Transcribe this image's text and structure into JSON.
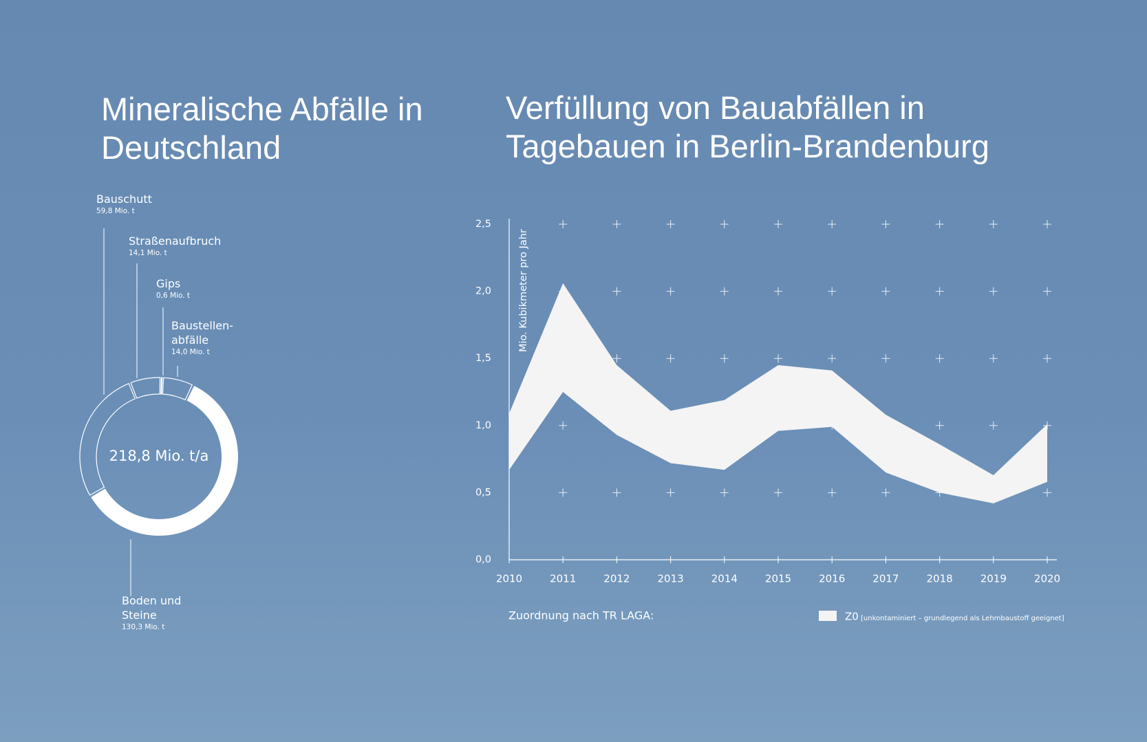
{
  "chart_data": [
    {
      "type": "donut",
      "title": "Mineralische Abfälle in Deutschland",
      "center_label": "218,8 Mio. t/a",
      "categories": [
        "Bauschutt",
        "Straßenaufbruch",
        "Gips",
        "Baustellen-abfälle",
        "Boden und Steine"
      ],
      "values": [
        59.8,
        14.1,
        0.6,
        14.0,
        130.3
      ],
      "value_labels": [
        "59,8 Mio. t",
        "14,1 Mio. t",
        "0,6 Mio. t",
        "14,0 Mio. t",
        "130,3 Mio. t"
      ],
      "color": "#ffffff",
      "filled": [
        false,
        false,
        false,
        false,
        true
      ]
    },
    {
      "type": "range_area",
      "title": "Verfüllung von Bauabfällen in Tagebauen in Berlin-Brandenburg",
      "y_label": "Mio. Kubikmeter pro Jahr",
      "x": [
        2010,
        2011,
        2012,
        2013,
        2014,
        2015,
        2016,
        2017,
        2018,
        2019,
        2020
      ],
      "series": [
        {
          "name": "Z0",
          "description": "[unkontaminiert – grundlegend als Lehmbaustoff geeignet]",
          "color": "#f4f4f4",
          "low": [
            0.67,
            1.25,
            0.93,
            0.72,
            0.67,
            0.96,
            0.99,
            0.65,
            0.5,
            0.42,
            0.58
          ],
          "high": [
            1.09,
            2.06,
            1.45,
            1.11,
            1.19,
            1.45,
            1.41,
            1.08,
            0.86,
            0.63,
            1.01
          ]
        }
      ],
      "legend_title": "Zuordnung nach TR LAGA:",
      "xlim": [
        2010,
        2020
      ],
      "xticks": [
        2010,
        2011,
        2012,
        2013,
        2014,
        2015,
        2016,
        2017,
        2018,
        2019,
        2020
      ],
      "ylim": [
        0,
        2.5
      ],
      "yticks": [
        {
          "value": 0,
          "label": "0,0"
        },
        {
          "value": 0.5,
          "label": "0,5"
        },
        {
          "value": 1,
          "label": "1,0"
        },
        {
          "value": 1.5,
          "label": "1,5"
        },
        {
          "value": 2,
          "label": "2,0"
        },
        {
          "value": 2.5,
          "label": "2,5"
        }
      ],
      "grid": "plus"
    }
  ]
}
